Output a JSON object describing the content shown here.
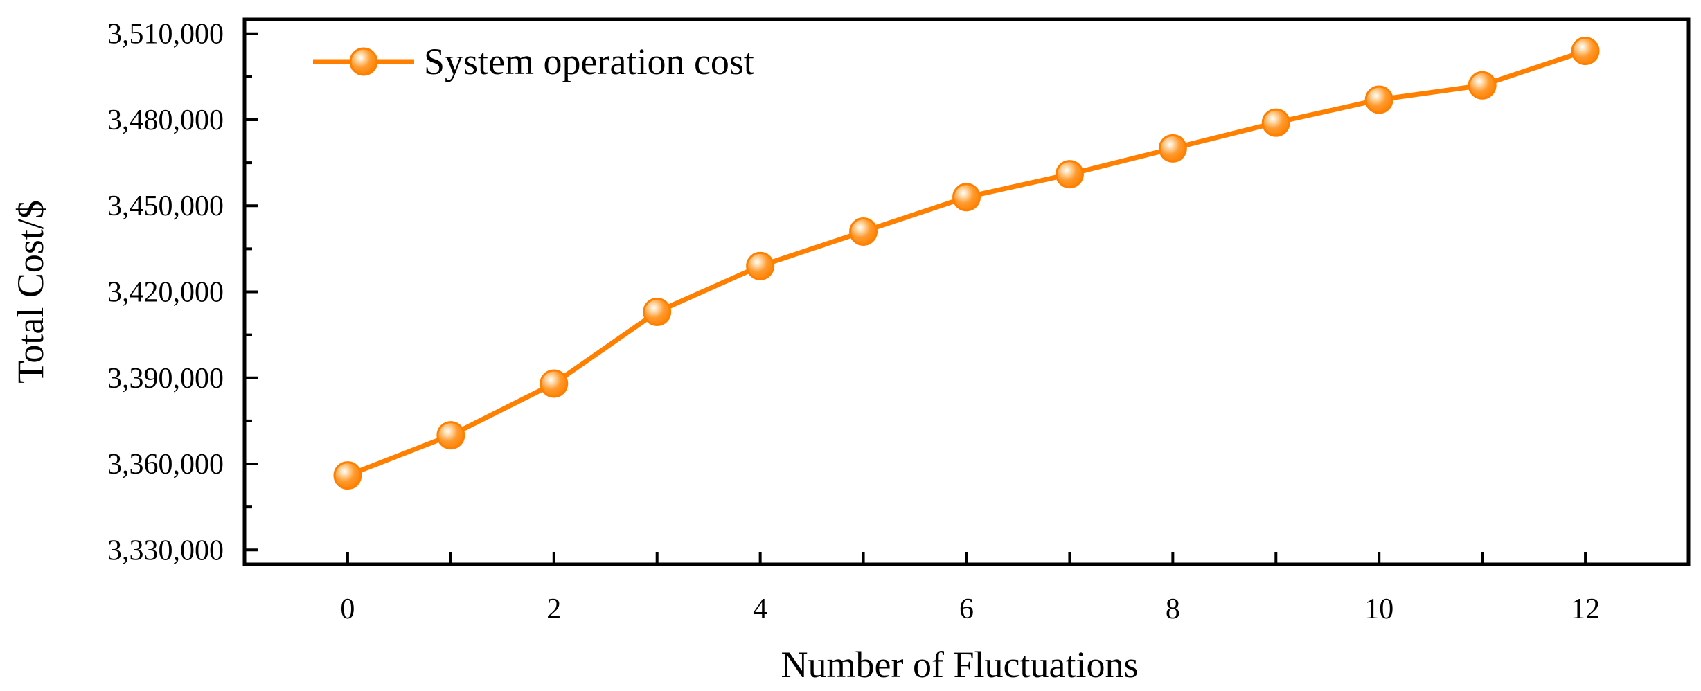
{
  "chart_data": {
    "type": "line",
    "xlabel": "Number of Fluctuations",
    "ylabel": "Total Cost/$",
    "xlim": [
      -1,
      13
    ],
    "ylim": [
      3325000,
      3515000
    ],
    "x_ticks": [
      0,
      1,
      2,
      3,
      4,
      5,
      6,
      7,
      8,
      9,
      10,
      11,
      12
    ],
    "x_tick_labels": [
      "0",
      "2",
      "4",
      "6",
      "8",
      "10",
      "12"
    ],
    "x_tick_label_values": [
      0,
      2,
      4,
      6,
      8,
      10,
      12
    ],
    "y_major_ticks": [
      3330000,
      3360000,
      3390000,
      3420000,
      3450000,
      3480000,
      3510000
    ],
    "y_tick_labels": [
      "3,330,000",
      "3,360,000",
      "3,390,000",
      "3,420,000",
      "3,450,000",
      "3,480,000",
      "3,510,000"
    ],
    "y_minor_ticks": [
      3345000,
      3375000,
      3405000,
      3435000,
      3465000,
      3495000
    ],
    "grid": false,
    "legend_position": "top-left",
    "series": [
      {
        "name": "System operation cost",
        "color": "#FF8000",
        "marker": "circle",
        "x": [
          0,
          1,
          2,
          3,
          4,
          5,
          6,
          7,
          8,
          9,
          10,
          11,
          12
        ],
        "values": [
          3356000,
          3370000,
          3388000,
          3413000,
          3429000,
          3441000,
          3453000,
          3461000,
          3470000,
          3479000,
          3487000,
          3492000,
          3504000
        ]
      }
    ]
  }
}
